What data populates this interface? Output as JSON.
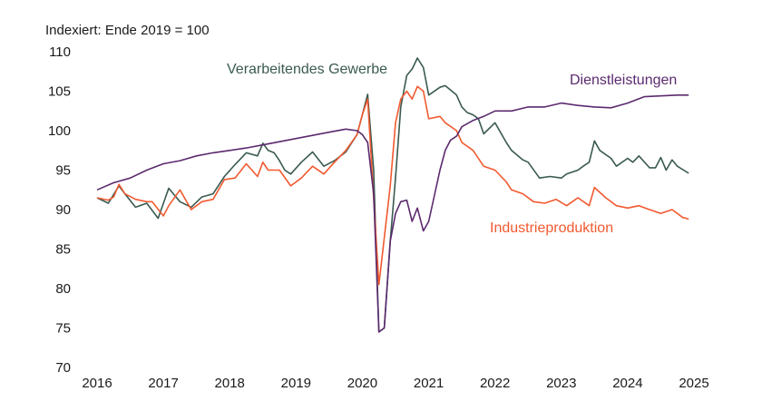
{
  "chart_data": {
    "type": "line",
    "unit_label": "Indexiert: Ende 2019 = 100",
    "ylim": [
      70,
      110
    ],
    "yticks": [
      70,
      75,
      80,
      85,
      90,
      95,
      100,
      105,
      110
    ],
    "xlim": [
      2016,
      2025
    ],
    "xticks": [
      2016,
      2017,
      2018,
      2019,
      2020,
      2021,
      2022,
      2023,
      2024,
      2025
    ],
    "grid": false,
    "legend": "inline labels",
    "series": [
      {
        "name": "Verarbeitendes Gewerbe",
        "color": "#3a5a50",
        "x": [
          2016.0,
          2016.17,
          2016.33,
          2016.42,
          2016.58,
          2016.75,
          2016.92,
          2017.08,
          2017.25,
          2017.42,
          2017.58,
          2017.75,
          2017.92,
          2018.08,
          2018.25,
          2018.42,
          2018.5,
          2018.58,
          2018.67,
          2018.75,
          2018.83,
          2018.92,
          2019.08,
          2019.25,
          2019.42,
          2019.58,
          2019.75,
          2019.92,
          2020.0,
          2020.08,
          2020.17,
          2020.25,
          2020.33,
          2020.42,
          2020.5,
          2020.58,
          2020.67,
          2020.75,
          2020.83,
          2020.92,
          2021.0,
          2021.17,
          2021.25,
          2021.42,
          2021.5,
          2021.58,
          2021.67,
          2021.75,
          2021.83,
          2022.0,
          2022.17,
          2022.25,
          2022.42,
          2022.5,
          2022.67,
          2022.83,
          2023.0,
          2023.08,
          2023.25,
          2023.33,
          2023.42,
          2023.5,
          2023.58,
          2023.75,
          2023.83,
          2024.0,
          2024.08,
          2024.17,
          2024.33,
          2024.42,
          2024.5,
          2024.58,
          2024.67,
          2024.75,
          2024.92
        ],
        "values": [
          91.5,
          90.8,
          93.0,
          92.0,
          90.3,
          90.8,
          88.9,
          92.7,
          91.0,
          90.3,
          91.6,
          92.0,
          94.2,
          95.7,
          97.2,
          96.8,
          98.4,
          97.5,
          97.2,
          96.2,
          95.0,
          94.5,
          96.0,
          97.3,
          95.5,
          96.2,
          97.3,
          99.5,
          102.0,
          104.6,
          95.0,
          74.5,
          75.0,
          86.0,
          94.0,
          103.0,
          107.0,
          107.8,
          109.2,
          108.0,
          104.5,
          105.5,
          105.7,
          104.5,
          103.0,
          102.3,
          102.0,
          101.5,
          99.6,
          101.0,
          98.5,
          97.5,
          96.3,
          96.0,
          94.0,
          94.2,
          94.0,
          94.5,
          95.0,
          95.5,
          96.0,
          98.7,
          97.5,
          96.5,
          95.5,
          96.5,
          96.0,
          96.8,
          95.3,
          95.3,
          96.6,
          95.0,
          96.3,
          95.5,
          94.6
        ]
      },
      {
        "name": "Industrieproduktion",
        "color": "#f15a30",
        "x": [
          2016.0,
          2016.17,
          2016.25,
          2016.33,
          2016.42,
          2016.58,
          2016.75,
          2016.83,
          2017.0,
          2017.08,
          2017.25,
          2017.42,
          2017.58,
          2017.75,
          2017.92,
          2018.08,
          2018.25,
          2018.42,
          2018.5,
          2018.58,
          2018.75,
          2018.92,
          2019.08,
          2019.25,
          2019.42,
          2019.58,
          2019.75,
          2019.92,
          2020.0,
          2020.08,
          2020.25,
          2020.42,
          2020.5,
          2020.58,
          2020.67,
          2020.75,
          2020.83,
          2020.92,
          2021.0,
          2021.17,
          2021.25,
          2021.42,
          2021.5,
          2021.67,
          2021.83,
          2022.0,
          2022.17,
          2022.25,
          2022.42,
          2022.58,
          2022.75,
          2022.92,
          2023.08,
          2023.25,
          2023.42,
          2023.5,
          2023.67,
          2023.83,
          2024.0,
          2024.17,
          2024.33,
          2024.5,
          2024.67,
          2024.83,
          2024.92
        ],
        "values": [
          91.5,
          91.2,
          91.6,
          93.2,
          92.0,
          91.3,
          91.0,
          91.0,
          89.2,
          90.5,
          92.5,
          90.0,
          91.0,
          91.3,
          93.8,
          94.0,
          95.8,
          94.2,
          96.0,
          95.0,
          95.0,
          93.0,
          94.0,
          95.5,
          94.5,
          96.0,
          97.5,
          99.5,
          102.0,
          104.0,
          80.5,
          93.0,
          101.0,
          104.0,
          105.0,
          104.0,
          105.6,
          105.0,
          101.5,
          101.8,
          101.0,
          100.0,
          98.5,
          97.5,
          95.5,
          95.0,
          93.5,
          92.5,
          92.0,
          91.0,
          90.8,
          91.3,
          90.5,
          91.5,
          90.5,
          92.8,
          91.5,
          90.5,
          90.2,
          90.5,
          90.0,
          89.5,
          90.0,
          89.0,
          88.8
        ]
      },
      {
        "name": "Dienstleistungen",
        "color": "#5b2a6e",
        "x": [
          2016.0,
          2016.25,
          2016.5,
          2016.75,
          2017.0,
          2017.25,
          2017.5,
          2017.75,
          2018.0,
          2018.25,
          2018.5,
          2018.75,
          2019.0,
          2019.25,
          2019.5,
          2019.75,
          2019.92,
          2020.0,
          2020.08,
          2020.17,
          2020.25,
          2020.33,
          2020.42,
          2020.5,
          2020.58,
          2020.67,
          2020.75,
          2020.83,
          2020.92,
          2021.0,
          2021.17,
          2021.25,
          2021.33,
          2021.42,
          2021.5,
          2021.67,
          2021.83,
          2022.0,
          2022.25,
          2022.5,
          2022.75,
          2023.0,
          2023.25,
          2023.5,
          2023.75,
          2024.0,
          2024.25,
          2024.5,
          2024.75,
          2024.92
        ],
        "values": [
          92.5,
          93.4,
          94.0,
          95.0,
          95.8,
          96.2,
          96.8,
          97.2,
          97.5,
          97.8,
          98.2,
          98.6,
          99.0,
          99.4,
          99.8,
          100.2,
          100.0,
          99.5,
          98.5,
          92.0,
          74.5,
          75.0,
          86.0,
          89.5,
          91.0,
          91.2,
          88.5,
          90.2,
          87.3,
          88.5,
          95.0,
          97.5,
          98.8,
          99.3,
          100.5,
          101.3,
          101.8,
          102.5,
          102.5,
          103.0,
          103.0,
          103.5,
          103.2,
          103.0,
          102.9,
          103.5,
          104.3,
          104.4,
          104.5,
          104.5
        ]
      }
    ]
  }
}
